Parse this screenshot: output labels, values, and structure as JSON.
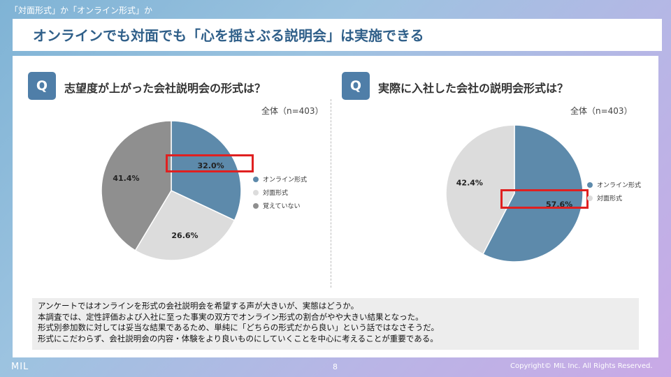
{
  "section_label": "「対面形式」か「オンライン形式」か",
  "title": "オンラインでも対面でも「心を揺さぶる説明会」は実施できる",
  "left": {
    "q": "Q",
    "question": "志望度が上がった会社説明会の形式は？",
    "sample": "全体（n=403）",
    "slices": [
      {
        "label": "オンライン形式",
        "value": 32.0,
        "display": "32.0%",
        "color": "#5d8aab"
      },
      {
        "label": "対面形式",
        "value": 26.6,
        "display": "26.6%",
        "color": "#dcdcdc"
      },
      {
        "label": "覚えていない",
        "value": 41.4,
        "display": "41.4%",
        "color": "#8f8f8f"
      }
    ]
  },
  "right": {
    "q": "Q",
    "question": "実際に入社した会社の説明会形式は？",
    "sample": "全体（n=403）",
    "slices": [
      {
        "label": "オンライン形式",
        "value": 57.6,
        "display": "57.6%",
        "color": "#5d8aab"
      },
      {
        "label": "対面形式",
        "value": 42.4,
        "display": "42.4%",
        "color": "#dcdcdc"
      }
    ]
  },
  "summary": [
    "アンケートではオンラインを形式の会社説明会を希望する声が大きいが、実態はどうか。",
    "本調査では、定性評価および入社に至った事実の双方でオンライン形式の割合がやや大きい結果となった。",
    "形式別参加数に対しては妥当な結果であるため、単純に「どちらの形式だから良い」という話ではなさそうだ。",
    "形式にこだわらず、会社説明会の内容・体験をより良いものにしていくことを中心に考えることが重要である。"
  ],
  "footer": {
    "logo": "MIL",
    "page": "8",
    "copyright": "Copyright© MIL Inc. All Rights Reserved."
  }
}
